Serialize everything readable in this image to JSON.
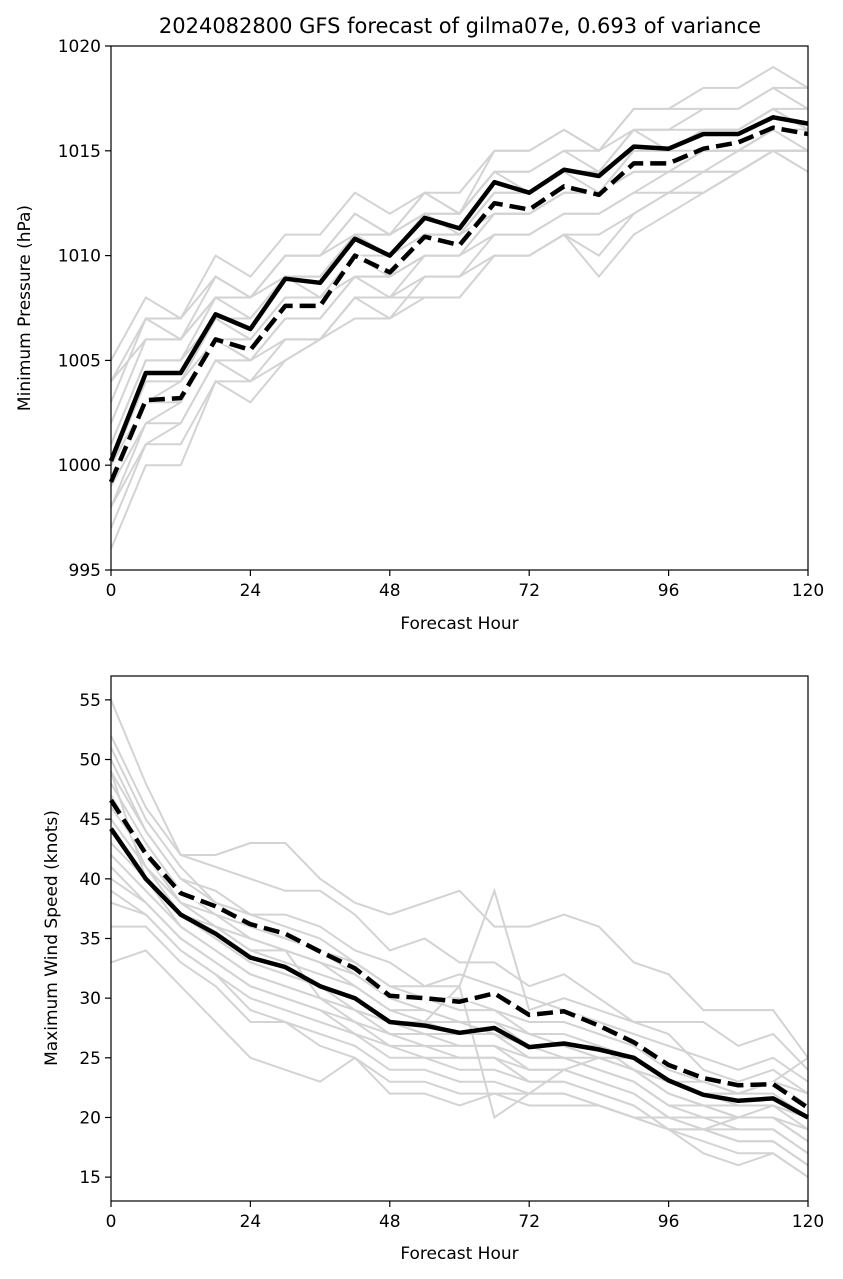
{
  "chart_data": [
    {
      "type": "line",
      "title": "2024082800 GFS forecast of gilma07e, 0.693 of variance",
      "xlabel": "Forecast Hour",
      "ylabel": "Minimum Pressure (hPa)",
      "xlim": [
        0,
        120
      ],
      "ylim": [
        995,
        1020
      ],
      "xticks": [
        "0",
        "24",
        "48",
        "72",
        "96",
        "120"
      ],
      "yticks": [
        "995",
        "1000",
        "1005",
        "1010",
        "1015",
        "1020"
      ],
      "grid": false,
      "x": [
        0,
        6,
        12,
        18,
        24,
        30,
        36,
        42,
        48,
        54,
        60,
        66,
        72,
        78,
        84,
        90,
        96,
        102,
        108,
        114,
        120
      ],
      "series": [
        {
          "style": "solid",
          "color": "#000000",
          "values": [
            1000.2,
            1004.4,
            1004.4,
            1007.2,
            1006.5,
            1008.9,
            1008.7,
            1010.8,
            1010.0,
            1011.8,
            1011.3,
            1013.5,
            1013.0,
            1014.1,
            1013.8,
            1015.2,
            1015.1,
            1015.8,
            1015.8,
            1016.6,
            1016.3
          ]
        },
        {
          "style": "dashed",
          "color": "#000000",
          "values": [
            999.2,
            1003.1,
            1003.2,
            1006.0,
            1005.5,
            1007.6,
            1007.6,
            1010.0,
            1009.2,
            1010.9,
            1010.5,
            1012.5,
            1012.2,
            1013.3,
            1012.9,
            1014.4,
            1014.4,
            1015.1,
            1015.4,
            1016.1,
            1015.8
          ]
        }
      ],
      "members": [
        [
          1005,
          1008,
          1007,
          1010,
          1009,
          1011,
          1011,
          1013,
          1012,
          1013,
          1013,
          1015,
          1015,
          1016,
          1015,
          1017,
          1017,
          1018,
          1018,
          1019,
          1018
        ],
        [
          1004,
          1007,
          1007,
          1009,
          1008,
          1010,
          1010,
          1012,
          1011,
          1013,
          1012,
          1014,
          1014,
          1015,
          1015,
          1016,
          1016,
          1017,
          1017,
          1018,
          1018
        ],
        [
          1003,
          1007,
          1006,
          1009,
          1008,
          1010,
          1010,
          1012,
          1011,
          1012,
          1012,
          1014,
          1014,
          1015,
          1014,
          1016,
          1016,
          1016,
          1016,
          1017,
          1016
        ],
        [
          1002,
          1006,
          1006,
          1008,
          1008,
          1009,
          1009,
          1011,
          1011,
          1012,
          1012,
          1014,
          1013,
          1014,
          1014,
          1016,
          1015,
          1016,
          1016,
          1017,
          1016
        ],
        [
          1001,
          1005,
          1005,
          1008,
          1007,
          1009,
          1009,
          1011,
          1010,
          1012,
          1011,
          1013,
          1013,
          1014,
          1014,
          1015,
          1015,
          1016,
          1016,
          1017,
          1017
        ],
        [
          1001,
          1005,
          1005,
          1007,
          1007,
          1009,
          1008,
          1010,
          1010,
          1011,
          1011,
          1013,
          1013,
          1014,
          1013,
          1015,
          1015,
          1015,
          1015,
          1016,
          1016
        ],
        [
          1000,
          1004,
          1004,
          1007,
          1006,
          1008,
          1008,
          1010,
          1009,
          1011,
          1011,
          1012,
          1012,
          1013,
          1013,
          1014,
          1014,
          1015,
          1015,
          1016,
          1015
        ],
        [
          1000,
          1003,
          1004,
          1006,
          1006,
          1008,
          1008,
          1009,
          1009,
          1010,
          1010,
          1012,
          1012,
          1013,
          1013,
          1014,
          1014,
          1015,
          1015,
          1016,
          1016
        ],
        [
          999,
          1003,
          1003,
          1006,
          1005,
          1007,
          1007,
          1009,
          1009,
          1010,
          1010,
          1012,
          1012,
          1013,
          1013,
          1014,
          1014,
          1014,
          1015,
          1015,
          1015
        ],
        [
          999,
          1002,
          1003,
          1006,
          1005,
          1007,
          1007,
          1009,
          1008,
          1010,
          1010,
          1011,
          1011,
          1012,
          1012,
          1013,
          1014,
          1014,
          1014,
          1015,
          1014
        ],
        [
          998,
          1002,
          1002,
          1005,
          1005,
          1006,
          1006,
          1008,
          1008,
          1009,
          1009,
          1011,
          1011,
          1012,
          1012,
          1013,
          1013,
          1014,
          1014,
          1015,
          1015
        ],
        [
          998,
          1001,
          1002,
          1005,
          1004,
          1006,
          1006,
          1008,
          1007,
          1009,
          1009,
          1010,
          1010,
          1011,
          1011,
          1012,
          1013,
          1013,
          1014,
          1015,
          1015
        ],
        [
          997,
          1001,
          1001,
          1004,
          1004,
          1005,
          1006,
          1008,
          1008,
          1008,
          1008,
          1010,
          1010,
          1011,
          1009,
          1011,
          1012,
          1013,
          1014,
          1015,
          1014
        ],
        [
          996,
          1000,
          1000,
          1004,
          1003,
          1005,
          1006,
          1007,
          1007,
          1008,
          1008,
          1010,
          1010,
          1011,
          1010,
          1012,
          1013,
          1013,
          1014,
          1015,
          1015
        ],
        [
          1004,
          1006,
          1006,
          1008,
          1008,
          1010,
          1010,
          1011,
          1011,
          1013,
          1012,
          1015,
          1015,
          1016,
          1015,
          1017,
          1017,
          1017,
          1017,
          1018,
          1017
        ]
      ]
    },
    {
      "type": "line",
      "xlabel": "Forecast Hour",
      "ylabel": "Maximum Wind Speed (knots)",
      "xlim": [
        0,
        120
      ],
      "ylim": [
        13,
        57
      ],
      "xticks": [
        "0",
        "24",
        "48",
        "72",
        "96",
        "120"
      ],
      "yticks": [
        "15",
        "20",
        "25",
        "30",
        "35",
        "40",
        "45",
        "50",
        "55"
      ],
      "grid": false,
      "x": [
        0,
        6,
        12,
        18,
        24,
        30,
        36,
        42,
        48,
        54,
        60,
        66,
        72,
        78,
        84,
        90,
        96,
        102,
        108,
        114,
        120
      ],
      "series": [
        {
          "style": "solid",
          "color": "#000000",
          "values": [
            44.2,
            40.0,
            37.0,
            35.4,
            33.4,
            32.6,
            31.0,
            30.0,
            28.0,
            27.7,
            27.1,
            27.5,
            25.9,
            26.2,
            25.7,
            25.0,
            23.1,
            21.9,
            21.4,
            21.6,
            20.0
          ]
        },
        {
          "style": "dashed",
          "color": "#000000",
          "values": [
            46.6,
            42.1,
            38.8,
            37.7,
            36.2,
            35.4,
            33.9,
            32.5,
            30.2,
            30.0,
            29.7,
            30.4,
            28.6,
            28.9,
            27.7,
            26.3,
            24.4,
            23.3,
            22.7,
            22.8,
            20.8
          ]
        }
      ],
      "members": [
        [
          55,
          48,
          42,
          42,
          43,
          43,
          40,
          38,
          37,
          38,
          39,
          36,
          36,
          37,
          36,
          33,
          32,
          29,
          29,
          29,
          25
        ],
        [
          52,
          46,
          42,
          41,
          40,
          39,
          39,
          37,
          34,
          35,
          33,
          33,
          31,
          32,
          30,
          28,
          28,
          28,
          26,
          27,
          24
        ],
        [
          51,
          45,
          41,
          38,
          37,
          37,
          36,
          34,
          33,
          31,
          32,
          31,
          30,
          29,
          28,
          27,
          26,
          25,
          24,
          25,
          23
        ],
        [
          50,
          44,
          40,
          39,
          37,
          36,
          35,
          33,
          31,
          31,
          31,
          39,
          29,
          30,
          29,
          28,
          27,
          24,
          23,
          24,
          22
        ],
        [
          49,
          44,
          40,
          38,
          36,
          35,
          34,
          33,
          31,
          30,
          30,
          29,
          28,
          28,
          27,
          26,
          24,
          23,
          22,
          23,
          21
        ],
        [
          48,
          43,
          39,
          37,
          35,
          34,
          33,
          32,
          30,
          30,
          29,
          29,
          27,
          27,
          26,
          25,
          23,
          22,
          22,
          22,
          20
        ],
        [
          47,
          42,
          38,
          36,
          34,
          34,
          33,
          31,
          29,
          29,
          28,
          28,
          27,
          26,
          26,
          24,
          23,
          22,
          21,
          21,
          20
        ],
        [
          46,
          42,
          38,
          36,
          34,
          33,
          32,
          31,
          29,
          28,
          28,
          28,
          26,
          26,
          25,
          24,
          22,
          21,
          21,
          21,
          19
        ],
        [
          45,
          41,
          37,
          35,
          33,
          32,
          31,
          30,
          28,
          28,
          27,
          27,
          26,
          25,
          25,
          24,
          22,
          21,
          20,
          20,
          19
        ],
        [
          44,
          40,
          37,
          35,
          33,
          32,
          31,
          29,
          28,
          27,
          27,
          27,
          25,
          25,
          24,
          23,
          21,
          21,
          20,
          20,
          18
        ],
        [
          43,
          40,
          36,
          34,
          32,
          31,
          30,
          29,
          27,
          27,
          26,
          26,
          25,
          25,
          24,
          23,
          21,
          20,
          20,
          20,
          18
        ],
        [
          42,
          39,
          36,
          34,
          32,
          31,
          30,
          28,
          27,
          26,
          26,
          26,
          24,
          24,
          23,
          22,
          20,
          20,
          19,
          19,
          17
        ],
        [
          41,
          38,
          35,
          33,
          31,
          30,
          29,
          28,
          26,
          26,
          25,
          25,
          24,
          24,
          23,
          22,
          20,
          19,
          19,
          19,
          17
        ],
        [
          40,
          38,
          35,
          33,
          31,
          30,
          29,
          27,
          26,
          25,
          25,
          25,
          23,
          23,
          22,
          21,
          19,
          19,
          18,
          18,
          16
        ],
        [
          39,
          37,
          34,
          32,
          30,
          29,
          28,
          27,
          25,
          25,
          24,
          24,
          23,
          23,
          22,
          21,
          19,
          19,
          18,
          18,
          16
        ],
        [
          38,
          37,
          34,
          32,
          29,
          28,
          27,
          26,
          24,
          24,
          23,
          23,
          22,
          22,
          21,
          20,
          19,
          18,
          17,
          17,
          15
        ],
        [
          36,
          36,
          33,
          31,
          28,
          28,
          26,
          25,
          23,
          23,
          22,
          22,
          22,
          22,
          21,
          20,
          19,
          17,
          16,
          17,
          15
        ],
        [
          33,
          34,
          31,
          28,
          25,
          24,
          23,
          25,
          22,
          22,
          21,
          22,
          21,
          21,
          21,
          20,
          20,
          19,
          20,
          21,
          20
        ],
        [
          49,
          40,
          37,
          36,
          35,
          34,
          30,
          29,
          28,
          28,
          31,
          20,
          22,
          24,
          25,
          24,
          23,
          22,
          22,
          23,
          22
        ],
        [
          47,
          41,
          38,
          37,
          36,
          35,
          34,
          32,
          30,
          29,
          28,
          27,
          26,
          26,
          25,
          25,
          23,
          23,
          22,
          23,
          25
        ]
      ]
    }
  ]
}
